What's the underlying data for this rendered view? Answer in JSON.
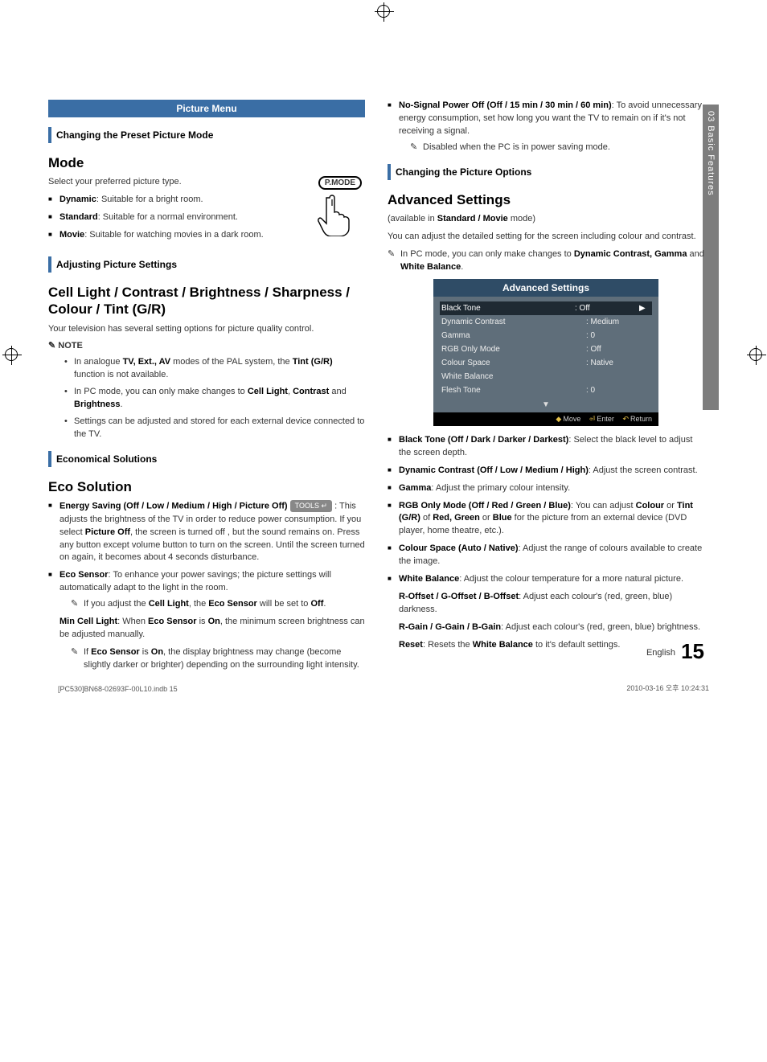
{
  "side_tab": "03  Basic Features",
  "left": {
    "picture_menu": "Picture Menu",
    "changing_preset": "Changing the Preset Picture Mode",
    "mode_title": "Mode",
    "mode_intro": "Select your preferred picture type.",
    "pmode_label": "P.MODE",
    "modes": {
      "dynamic": {
        "name": "Dynamic",
        "desc": ": Suitable for a bright room."
      },
      "standard": {
        "name": "Standard",
        "desc": ": Suitable for a normal environment."
      },
      "movie": {
        "name": "Movie",
        "desc": ": Suitable for watching movies in a dark room."
      }
    },
    "adjusting_head": "Adjusting Picture Settings",
    "settings_title": "Cell Light / Contrast / Brightness / Sharpness / Colour / Tint (G/R)",
    "settings_intro": "Your television has several setting options for picture quality control.",
    "note_label": "NOTE",
    "notes": [
      {
        "pre": "In analogue ",
        "b1": "TV, Ext., AV",
        "mid": " modes of the PAL system, the ",
        "b2": "Tint (G/R)",
        "post": " function is not available."
      },
      {
        "pre": "In PC mode, you can only make changes to ",
        "b1": "Cell Light",
        "c1": ", ",
        "b2": "Contrast",
        "c2": " and ",
        "b3": "Brightness",
        "post": "."
      },
      {
        "pre": "Settings can be adjusted and stored for each external device connected to the TV."
      }
    ],
    "eco_head": "Economical Solutions",
    "eco_title": "Eco Solution",
    "energy": {
      "b": "Energy Saving (Off / Low / Medium / High / Picture Off)",
      "tools": "TOOLS",
      "desc": " : This adjusts the brightness of the TV in order to reduce power consumption. If you select ",
      "b2": "Picture Off",
      "desc2": ", the screen is turned off , but the sound remains on. Press any button except volume button to turn on the screen. Until the screen turned on again, it becomes about 4 seconds disturbance."
    },
    "sensor": {
      "b": "Eco Sensor",
      "desc": ": To enhance your power savings; the picture settings will automatically adapt to the light in the room.",
      "n1a": "If you adjust the ",
      "n1b": "Cell Light",
      "n1c": ", the ",
      "n1d": "Eco Sensor",
      "n1e": " will be set to ",
      "n1f": "Off",
      "n1g": ".",
      "min_b": "Min Cell Light",
      "min_d": ": When ",
      "min_b2": "Eco Sensor",
      "min_d2": " is ",
      "min_b3": "On",
      "min_d3": ", the minimum screen brightness can be adjusted manually.",
      "n2a": "If ",
      "n2b": "Eco Sensor",
      "n2c": " is ",
      "n2d": "On",
      "n2e": ", the display brightness may change (become slightly darker or brighter) depending on the surrounding light intensity."
    }
  },
  "right": {
    "nosignal": {
      "b": "No-Signal Power Off (Off / 15 min / 30 min / 60 min)",
      "desc": ": To avoid unnecessary energy consumption, set how long you want the TV to remain on if it's not receiving a signal.",
      "note": "Disabled when the PC is in power saving mode."
    },
    "changing_opts": "Changing the Picture Options",
    "adv_title": "Advanced Settings",
    "adv_avail_pre": "(available in ",
    "adv_avail_b": "Standard / Movie",
    "adv_avail_post": " mode)",
    "adv_intro": "You can adjust the detailed setting for the screen including colour and contrast.",
    "adv_note_pre": "In PC mode, you can only make changes to ",
    "adv_note_b1": "Dynamic Contrast, Gamma",
    "adv_note_mid": " and ",
    "adv_note_b2": "White Balance",
    "adv_note_post": ".",
    "adv_box": {
      "title": "Advanced Settings",
      "rows": [
        {
          "lbl": "Black Tone",
          "val": ": Off",
          "sel": true,
          "arrow": "▶"
        },
        {
          "lbl": "Dynamic Contrast",
          "val": ": Medium"
        },
        {
          "lbl": "Gamma",
          "val": ": 0"
        },
        {
          "lbl": "RGB Only Mode",
          "val": ": Off"
        },
        {
          "lbl": "Colour Space",
          "val": ": Native"
        },
        {
          "lbl": "White Balance",
          "val": ""
        },
        {
          "lbl": "Flesh Tone",
          "val": ": 0"
        }
      ],
      "down": "▼",
      "foot_move": "Move",
      "foot_enter": "Enter",
      "foot_return": "Return"
    },
    "items": {
      "blacktone": {
        "b": "Black Tone (Off / Dark / Darker / Darkest)",
        "d": ": Select the black level to adjust the screen depth."
      },
      "dyn": {
        "b": "Dynamic Contrast (Off / Low / Medium / High)",
        "d": ": Adjust the screen contrast."
      },
      "gamma": {
        "b": "Gamma",
        "d": ": Adjust the primary colour intensity."
      },
      "rgb": {
        "b": "RGB Only Mode (Off / Red / Green / Blue)",
        "d1": ": You can adjust ",
        "b2": "Colour",
        "d2": " or ",
        "b3": "Tint (G/R)",
        "d3": " of ",
        "b4": "Red, Green",
        "d4": " or ",
        "b5": "Blue",
        "d5": " for the picture from an external device (DVD player, home theatre, etc.)."
      },
      "cspace": {
        "b": "Colour Space (Auto / Native)",
        "d": ": Adjust the range of colours available to create the image."
      },
      "wb": {
        "b": "White Balance",
        "d": ": Adjust the colour temperature for a more natural picture.",
        "off_b": "R-Offset / G-Offset / B-Offset",
        "off_d": ": Adjust each colour's (red, green, blue) darkness.",
        "gain_b": "R-Gain / G-Gain / B-Gain",
        "gain_d": ": Adjust each colour's (red, green, blue) brightness.",
        "reset_b": "Reset",
        "reset_d": ": Resets the ",
        "reset_b2": "White Balance",
        "reset_d2": " to it's default settings."
      }
    }
  },
  "footer": {
    "lang": "English",
    "page": "15"
  },
  "meta": {
    "left": "[PC530]BN68-02693F-00L10.indb   15",
    "right": "2010-03-16   오후 10:24:31"
  }
}
